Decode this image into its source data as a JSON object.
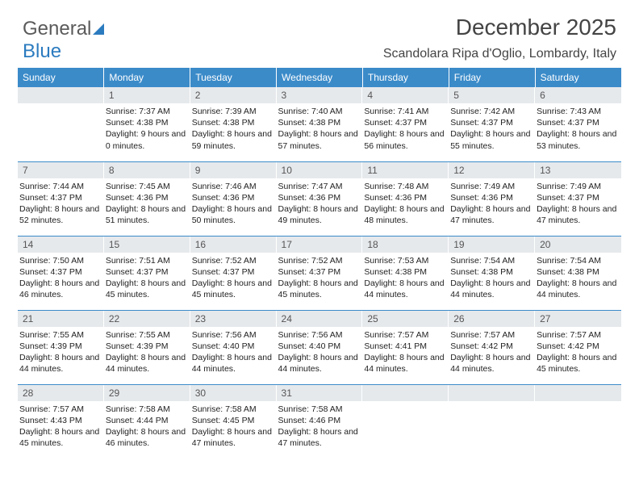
{
  "logo": {
    "text1": "General",
    "text2": "Blue"
  },
  "title": "December 2025",
  "subtitle": "Scandolara Ripa d'Oglio, Lombardy, Italy",
  "colors": {
    "header_bg": "#3b8bc9",
    "header_text": "#ffffff",
    "daynum_bg": "#e6e9ec",
    "row_divider": "#3b8bc9",
    "text": "#333333",
    "logo_gray": "#5a5a5a",
    "logo_blue": "#2b7bbf"
  },
  "day_headers": [
    "Sunday",
    "Monday",
    "Tuesday",
    "Wednesday",
    "Thursday",
    "Friday",
    "Saturday"
  ],
  "weeks": [
    [
      {
        "blank": true
      },
      {
        "n": "1",
        "sunrise": "7:37 AM",
        "sunset": "4:38 PM",
        "daylight": "9 hours and 0 minutes."
      },
      {
        "n": "2",
        "sunrise": "7:39 AM",
        "sunset": "4:38 PM",
        "daylight": "8 hours and 59 minutes."
      },
      {
        "n": "3",
        "sunrise": "7:40 AM",
        "sunset": "4:38 PM",
        "daylight": "8 hours and 57 minutes."
      },
      {
        "n": "4",
        "sunrise": "7:41 AM",
        "sunset": "4:37 PM",
        "daylight": "8 hours and 56 minutes."
      },
      {
        "n": "5",
        "sunrise": "7:42 AM",
        "sunset": "4:37 PM",
        "daylight": "8 hours and 55 minutes."
      },
      {
        "n": "6",
        "sunrise": "7:43 AM",
        "sunset": "4:37 PM",
        "daylight": "8 hours and 53 minutes."
      }
    ],
    [
      {
        "n": "7",
        "sunrise": "7:44 AM",
        "sunset": "4:37 PM",
        "daylight": "8 hours and 52 minutes."
      },
      {
        "n": "8",
        "sunrise": "7:45 AM",
        "sunset": "4:36 PM",
        "daylight": "8 hours and 51 minutes."
      },
      {
        "n": "9",
        "sunrise": "7:46 AM",
        "sunset": "4:36 PM",
        "daylight": "8 hours and 50 minutes."
      },
      {
        "n": "10",
        "sunrise": "7:47 AM",
        "sunset": "4:36 PM",
        "daylight": "8 hours and 49 minutes."
      },
      {
        "n": "11",
        "sunrise": "7:48 AM",
        "sunset": "4:36 PM",
        "daylight": "8 hours and 48 minutes."
      },
      {
        "n": "12",
        "sunrise": "7:49 AM",
        "sunset": "4:36 PM",
        "daylight": "8 hours and 47 minutes."
      },
      {
        "n": "13",
        "sunrise": "7:49 AM",
        "sunset": "4:37 PM",
        "daylight": "8 hours and 47 minutes."
      }
    ],
    [
      {
        "n": "14",
        "sunrise": "7:50 AM",
        "sunset": "4:37 PM",
        "daylight": "8 hours and 46 minutes."
      },
      {
        "n": "15",
        "sunrise": "7:51 AM",
        "sunset": "4:37 PM",
        "daylight": "8 hours and 45 minutes."
      },
      {
        "n": "16",
        "sunrise": "7:52 AM",
        "sunset": "4:37 PM",
        "daylight": "8 hours and 45 minutes."
      },
      {
        "n": "17",
        "sunrise": "7:52 AM",
        "sunset": "4:37 PM",
        "daylight": "8 hours and 45 minutes."
      },
      {
        "n": "18",
        "sunrise": "7:53 AM",
        "sunset": "4:38 PM",
        "daylight": "8 hours and 44 minutes."
      },
      {
        "n": "19",
        "sunrise": "7:54 AM",
        "sunset": "4:38 PM",
        "daylight": "8 hours and 44 minutes."
      },
      {
        "n": "20",
        "sunrise": "7:54 AM",
        "sunset": "4:38 PM",
        "daylight": "8 hours and 44 minutes."
      }
    ],
    [
      {
        "n": "21",
        "sunrise": "7:55 AM",
        "sunset": "4:39 PM",
        "daylight": "8 hours and 44 minutes."
      },
      {
        "n": "22",
        "sunrise": "7:55 AM",
        "sunset": "4:39 PM",
        "daylight": "8 hours and 44 minutes."
      },
      {
        "n": "23",
        "sunrise": "7:56 AM",
        "sunset": "4:40 PM",
        "daylight": "8 hours and 44 minutes."
      },
      {
        "n": "24",
        "sunrise": "7:56 AM",
        "sunset": "4:40 PM",
        "daylight": "8 hours and 44 minutes."
      },
      {
        "n": "25",
        "sunrise": "7:57 AM",
        "sunset": "4:41 PM",
        "daylight": "8 hours and 44 minutes."
      },
      {
        "n": "26",
        "sunrise": "7:57 AM",
        "sunset": "4:42 PM",
        "daylight": "8 hours and 44 minutes."
      },
      {
        "n": "27",
        "sunrise": "7:57 AM",
        "sunset": "4:42 PM",
        "daylight": "8 hours and 45 minutes."
      }
    ],
    [
      {
        "n": "28",
        "sunrise": "7:57 AM",
        "sunset": "4:43 PM",
        "daylight": "8 hours and 45 minutes."
      },
      {
        "n": "29",
        "sunrise": "7:58 AM",
        "sunset": "4:44 PM",
        "daylight": "8 hours and 46 minutes."
      },
      {
        "n": "30",
        "sunrise": "7:58 AM",
        "sunset": "4:45 PM",
        "daylight": "8 hours and 47 minutes."
      },
      {
        "n": "31",
        "sunrise": "7:58 AM",
        "sunset": "4:46 PM",
        "daylight": "8 hours and 47 minutes."
      },
      {
        "blank": true
      },
      {
        "blank": true
      },
      {
        "blank": true
      }
    ]
  ],
  "labels": {
    "sunrise": "Sunrise:",
    "sunset": "Sunset:",
    "daylight": "Daylight:"
  }
}
